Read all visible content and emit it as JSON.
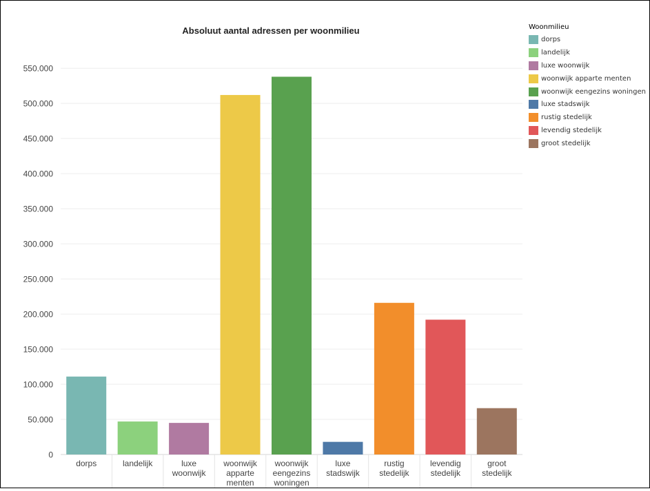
{
  "chart_data": {
    "type": "bar",
    "title": "Absoluut aantal adressen per woonmilieu",
    "xlabel": "",
    "ylabel": "",
    "ylim": [
      0,
      560000
    ],
    "yticks": [
      0,
      50000,
      100000,
      150000,
      200000,
      250000,
      300000,
      350000,
      400000,
      450000,
      500000,
      550000
    ],
    "ytick_labels": [
      "0",
      "50.000",
      "100.000",
      "150.000",
      "200.000",
      "250.000",
      "300.000",
      "350.000",
      "400.000",
      "450.000",
      "500.000",
      "550.000"
    ],
    "grid": true,
    "legend_position": "top-right",
    "legend_title": "Woonmilieu",
    "categories": [
      "dorps",
      "landelijk",
      "luxe woonwijk",
      "woonwijk apparte menten",
      "woonwijk eengezins woningen",
      "luxe stadswijk",
      "rustig stedelijk",
      "levendig stedelijk",
      "groot stedelijk"
    ],
    "category_label_lines": [
      [
        "dorps"
      ],
      [
        "landelijk"
      ],
      [
        "luxe",
        "woonwijk"
      ],
      [
        "woonwijk",
        "apparte",
        "menten"
      ],
      [
        "woonwijk",
        "eengezins",
        "woningen"
      ],
      [
        "luxe",
        "stadswijk"
      ],
      [
        "rustig",
        "stedelijk"
      ],
      [
        "levendig",
        "stedelijk"
      ],
      [
        "groot",
        "stedelijk"
      ]
    ],
    "values": [
      111000,
      47000,
      45000,
      512000,
      538000,
      18000,
      216000,
      192000,
      66000
    ],
    "colors": [
      "#79B7B2",
      "#8CD17D",
      "#B07AA1",
      "#EDC948",
      "#59A14F",
      "#4E79A7",
      "#F28E2B",
      "#E15759",
      "#9C755F"
    ]
  }
}
